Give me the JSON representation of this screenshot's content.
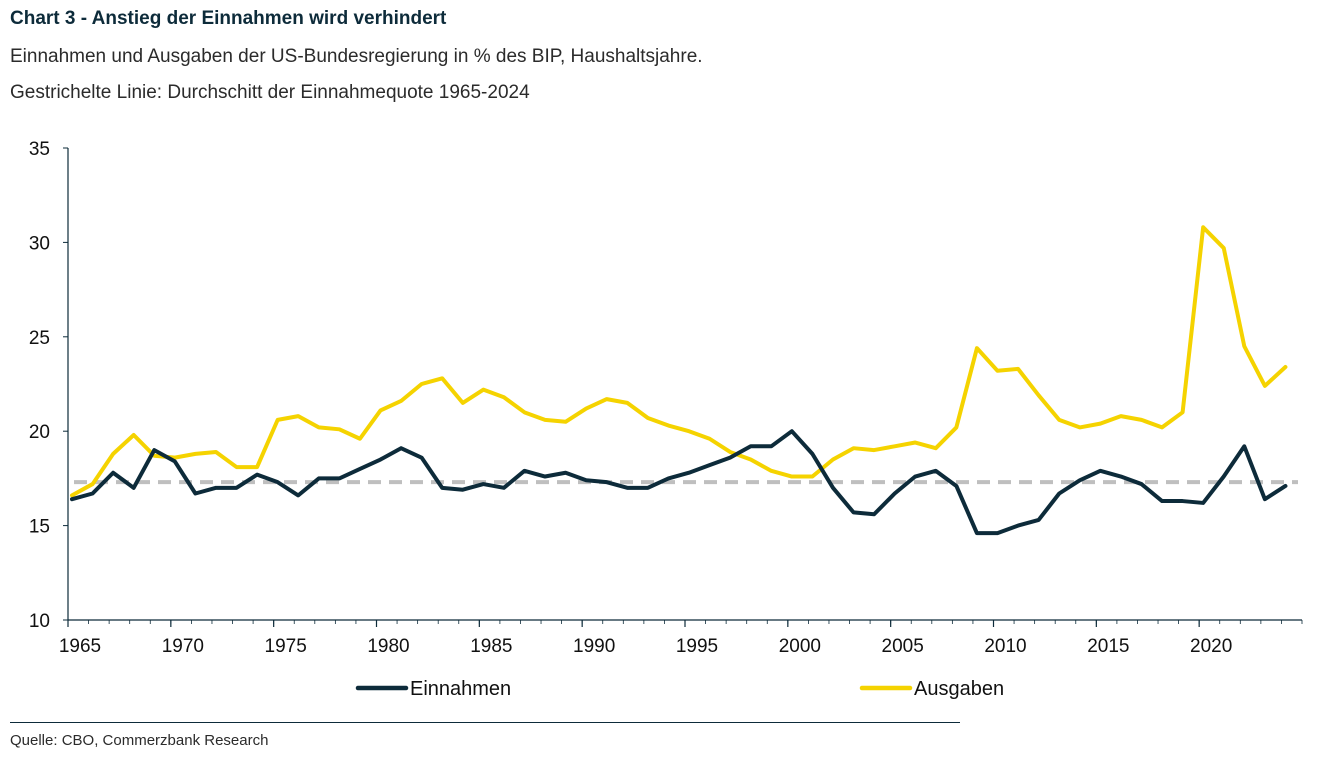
{
  "header": {
    "title": "Chart 3 - Anstieg der Einnahmen wird verhindert",
    "subtitle1": "Einnahmen und Ausgaben der US-Bundesregierung in % des BIP, Haushaltsjahre.",
    "subtitle2": "Gestrichelte Linie: Durchschitt der Einnahmequote 1965-2024"
  },
  "footer": {
    "source": "Quelle: CBO, Commerzbank Research"
  },
  "colors": {
    "einnahmen": "#0d2b3a",
    "ausgaben": "#f5d300",
    "average": "#bfbfbf",
    "axis": "#0d2b3a"
  },
  "chart_data": {
    "type": "line",
    "x": [
      1965,
      1966,
      1967,
      1968,
      1969,
      1970,
      1971,
      1972,
      1973,
      1974,
      1975,
      1976,
      1977,
      1978,
      1979,
      1980,
      1981,
      1982,
      1983,
      1984,
      1985,
      1986,
      1987,
      1988,
      1989,
      1990,
      1991,
      1992,
      1993,
      1994,
      1995,
      1996,
      1997,
      1998,
      1999,
      2000,
      2001,
      2002,
      2003,
      2004,
      2005,
      2006,
      2007,
      2008,
      2009,
      2010,
      2011,
      2012,
      2013,
      2014,
      2015,
      2016,
      2017,
      2018,
      2019,
      2020,
      2021,
      2022,
      2023,
      2024
    ],
    "series": [
      {
        "name": "Einnahmen",
        "values": [
          16.4,
          16.7,
          17.8,
          17.0,
          19.0,
          18.4,
          16.7,
          17.0,
          17.0,
          17.7,
          17.3,
          16.6,
          17.5,
          17.5,
          18.0,
          18.5,
          19.1,
          18.6,
          17.0,
          16.9,
          17.2,
          17.0,
          17.9,
          17.6,
          17.8,
          17.4,
          17.3,
          17.0,
          17.0,
          17.5,
          17.8,
          18.2,
          18.6,
          19.2,
          19.2,
          20.0,
          18.8,
          17.0,
          15.7,
          15.6,
          16.7,
          17.6,
          17.9,
          17.1,
          14.6,
          14.6,
          15.0,
          15.3,
          16.7,
          17.4,
          17.9,
          17.6,
          17.2,
          16.3,
          16.3,
          16.2,
          17.6,
          19.2,
          16.4,
          17.1
        ]
      },
      {
        "name": "Ausgaben",
        "values": [
          16.6,
          17.2,
          18.8,
          19.8,
          18.7,
          18.6,
          18.8,
          18.9,
          18.1,
          18.1,
          20.6,
          20.8,
          20.2,
          20.1,
          19.6,
          21.1,
          21.6,
          22.5,
          22.8,
          21.5,
          22.2,
          21.8,
          21.0,
          20.6,
          20.5,
          21.2,
          21.7,
          21.5,
          20.7,
          20.3,
          20.0,
          19.6,
          18.9,
          18.5,
          17.9,
          17.6,
          17.6,
          18.5,
          19.1,
          19.0,
          19.2,
          19.4,
          19.1,
          20.2,
          24.4,
          23.2,
          23.3,
          21.9,
          20.6,
          20.2,
          20.4,
          20.8,
          20.6,
          20.2,
          21.0,
          30.8,
          29.7,
          24.5,
          22.4,
          23.4
        ]
      }
    ],
    "average_line": 17.3,
    "xticks": [
      1965,
      1970,
      1975,
      1980,
      1985,
      1990,
      1995,
      2000,
      2005,
      2010,
      2015,
      2020
    ],
    "yticks": [
      10,
      15,
      20,
      25,
      30,
      35
    ],
    "xlim": [
      1965,
      2025
    ],
    "ylim": [
      10,
      35
    ],
    "legend_position": "bottom"
  }
}
